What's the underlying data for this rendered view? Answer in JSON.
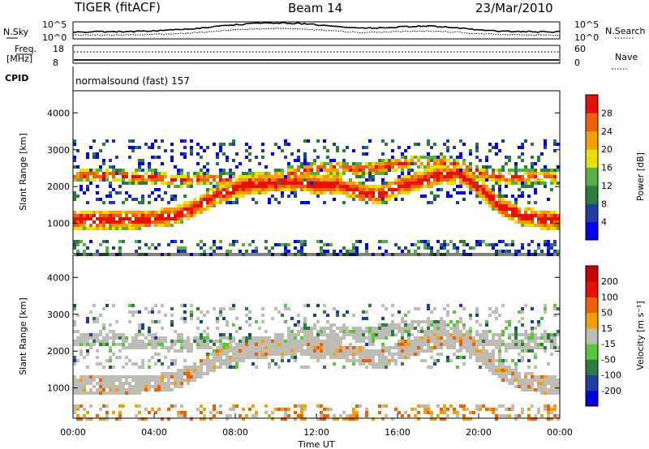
{
  "header": {
    "radar": "TIGER (fitACF)",
    "beam": "Beam 14",
    "date": "23/Mar/2010"
  },
  "strip": {
    "nsky_label": "N.Sky",
    "nsky_ticks": [
      "10^5",
      "10^0"
    ],
    "nsearch_label": "N.Search",
    "nsearch_ticks": [
      "10^5",
      "10^0"
    ],
    "freq_label": "Freq.",
    "freq_unit": "[MHz]",
    "freq_ticks": [
      "18",
      "8"
    ],
    "nave_label": "Nave",
    "nave_ticks": [
      "60",
      "0"
    ],
    "cpid_label": "CPID",
    "cpid_text": "normalsound (fast) 157"
  },
  "chart_data": [
    {
      "type": "heatmap",
      "panel": "power",
      "ylabel": "Slant Range [km]",
      "y_ticks": [
        "1000",
        "2000",
        "3000",
        "4000"
      ],
      "ylim": [
        180,
        4600
      ],
      "xlim_hours": [
        0,
        24
      ],
      "colorbar_label": "Power [dB]",
      "colorbar_ticks": [
        "28",
        "24",
        "20",
        "16",
        "12",
        "8",
        "4"
      ],
      "colorbar_colors": [
        "#0000ff",
        "#1e3ea6",
        "#2e7b3f",
        "#55b04a",
        "#e8e000",
        "#f5a000",
        "#f06000",
        "#e81000"
      ],
      "bands": [
        {
          "name": "near-range echo",
          "center_km": [
            1150,
            1150,
            1150,
            1150,
            1170,
            1250,
            1500,
            1800,
            2000,
            2100,
            2150,
            2150,
            2100,
            2100,
            1900,
            1800,
            2050,
            2200,
            2350,
            2400,
            2000,
            1500,
            1250,
            1150,
            1150
          ],
          "width_km": 250
        },
        {
          "name": "far echo",
          "center_km": [
            2350,
            2350,
            2350,
            2300,
            2300,
            2200,
            2250,
            2250,
            2200,
            2250,
            2300,
            2450,
            2550,
            2550,
            2500,
            2550,
            2650,
            2700,
            2700,
            2600,
            2400,
            2300,
            2300,
            2300,
            2300
          ],
          "width_km": 200
        }
      ],
      "x_step_hours": 1
    },
    {
      "type": "heatmap",
      "panel": "velocity",
      "ylabel": "Slant Range [km]",
      "y_ticks": [
        "1000",
        "2000",
        "3000",
        "4000"
      ],
      "ylim": [
        180,
        4600
      ],
      "xlim_hours": [
        0,
        24
      ],
      "xlabel": "Time UT",
      "x_ticks": [
        "00:00",
        "04:00",
        "08:00",
        "12:00",
        "16:00",
        "20:00",
        "00:00"
      ],
      "colorbar_label": "Velocity [m s⁻¹]",
      "colorbar_ticks": [
        "200",
        "100",
        "50",
        "15",
        "-15",
        "-50",
        "-100",
        "-200"
      ],
      "colorbar_colors": [
        "#0000e0",
        "#1e3ea6",
        "#2e7b3f",
        "#55c83c",
        "#bdbdb5",
        "#f5a000",
        "#f06000",
        "#e81000",
        "#c80000"
      ],
      "dominant_value_ms": [
        -15,
        15
      ]
    }
  ]
}
